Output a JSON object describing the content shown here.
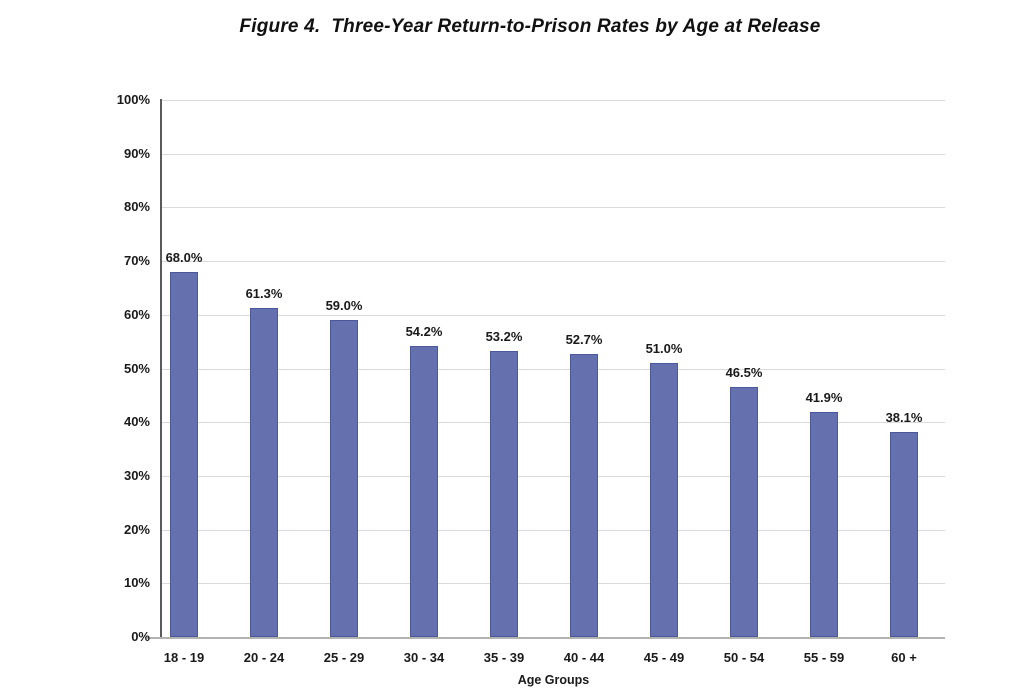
{
  "chart_data": {
    "type": "bar",
    "title": "Figure 4.  Three-Year Return-to-Prison Rates by Age at Release",
    "categories": [
      "18 - 19",
      "20 - 24",
      "25 - 29",
      "30 - 34",
      "35 - 39",
      "40 - 44",
      "45 - 49",
      "50 - 54",
      "55 - 59",
      "60 +"
    ],
    "values": [
      68.0,
      61.3,
      59.0,
      54.2,
      53.2,
      52.7,
      51.0,
      46.5,
      41.9,
      38.1
    ],
    "value_labels": [
      "68.0%",
      "61.3%",
      "59.0%",
      "54.2%",
      "53.2%",
      "52.7%",
      "51.0%",
      "46.5%",
      "41.9%",
      "38.1%"
    ],
    "xlabel": "Age Groups",
    "ylabel": "",
    "ylim": [
      0,
      100
    ],
    "ytick_step": 10,
    "ytick_labels": [
      "0%",
      "10%",
      "20%",
      "30%",
      "40%",
      "50%",
      "60%",
      "70%",
      "80%",
      "90%",
      "100%"
    ],
    "grid": true,
    "legend_position": "none",
    "colors": {
      "bar_fill": "#6571AF",
      "bar_border": "#4C589E",
      "gridline": "#DADADA",
      "y_axis_line": "#5A5A5A",
      "x_axis_line": "#B3B3B3",
      "text": "#1A1A1A"
    }
  }
}
